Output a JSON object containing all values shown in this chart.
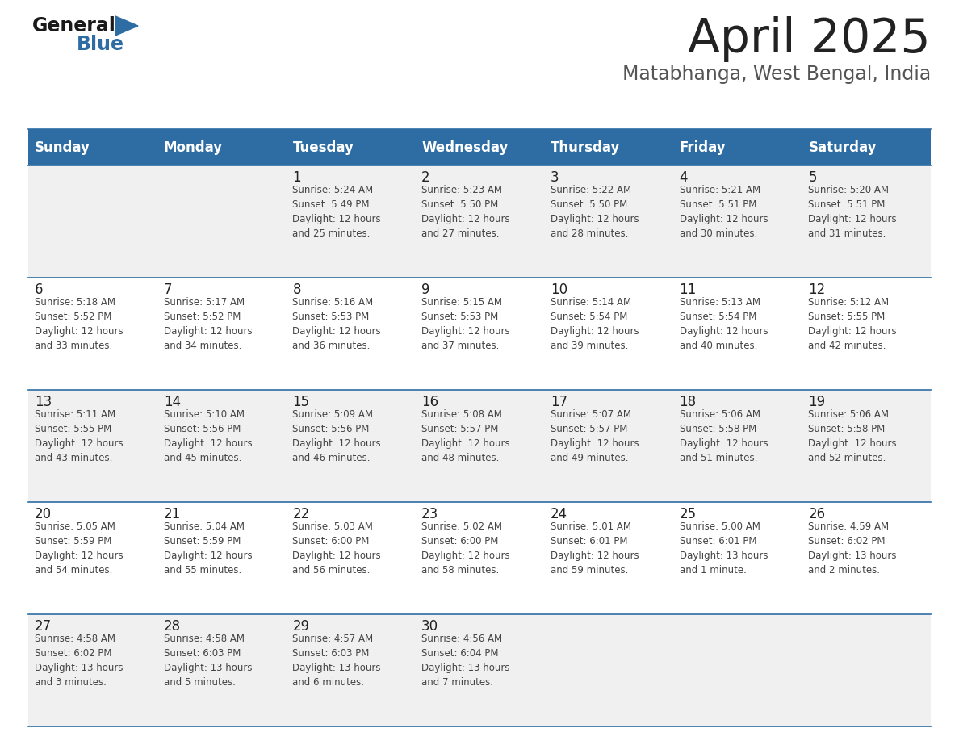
{
  "title": "April 2025",
  "subtitle": "Matabhanga, West Bengal, India",
  "header_bg": "#2E6DA4",
  "header_text_color": "#FFFFFF",
  "day_headers": [
    "Sunday",
    "Monday",
    "Tuesday",
    "Wednesday",
    "Thursday",
    "Friday",
    "Saturday"
  ],
  "title_color": "#222222",
  "subtitle_color": "#555555",
  "line_color": "#2E6DA4",
  "day_number_color": "#222222",
  "cell_text_color": "#444444",
  "logo_general_color": "#1a1a1a",
  "logo_blue_color": "#2E6DA4",
  "cell_bg_light": "#F0F0F0",
  "cell_bg_white": "#FFFFFF",
  "calendar": [
    [
      {
        "day": "",
        "info": ""
      },
      {
        "day": "",
        "info": ""
      },
      {
        "day": "1",
        "info": "Sunrise: 5:24 AM\nSunset: 5:49 PM\nDaylight: 12 hours\nand 25 minutes."
      },
      {
        "day": "2",
        "info": "Sunrise: 5:23 AM\nSunset: 5:50 PM\nDaylight: 12 hours\nand 27 minutes."
      },
      {
        "day": "3",
        "info": "Sunrise: 5:22 AM\nSunset: 5:50 PM\nDaylight: 12 hours\nand 28 minutes."
      },
      {
        "day": "4",
        "info": "Sunrise: 5:21 AM\nSunset: 5:51 PM\nDaylight: 12 hours\nand 30 minutes."
      },
      {
        "day": "5",
        "info": "Sunrise: 5:20 AM\nSunset: 5:51 PM\nDaylight: 12 hours\nand 31 minutes."
      }
    ],
    [
      {
        "day": "6",
        "info": "Sunrise: 5:18 AM\nSunset: 5:52 PM\nDaylight: 12 hours\nand 33 minutes."
      },
      {
        "day": "7",
        "info": "Sunrise: 5:17 AM\nSunset: 5:52 PM\nDaylight: 12 hours\nand 34 minutes."
      },
      {
        "day": "8",
        "info": "Sunrise: 5:16 AM\nSunset: 5:53 PM\nDaylight: 12 hours\nand 36 minutes."
      },
      {
        "day": "9",
        "info": "Sunrise: 5:15 AM\nSunset: 5:53 PM\nDaylight: 12 hours\nand 37 minutes."
      },
      {
        "day": "10",
        "info": "Sunrise: 5:14 AM\nSunset: 5:54 PM\nDaylight: 12 hours\nand 39 minutes."
      },
      {
        "day": "11",
        "info": "Sunrise: 5:13 AM\nSunset: 5:54 PM\nDaylight: 12 hours\nand 40 minutes."
      },
      {
        "day": "12",
        "info": "Sunrise: 5:12 AM\nSunset: 5:55 PM\nDaylight: 12 hours\nand 42 minutes."
      }
    ],
    [
      {
        "day": "13",
        "info": "Sunrise: 5:11 AM\nSunset: 5:55 PM\nDaylight: 12 hours\nand 43 minutes."
      },
      {
        "day": "14",
        "info": "Sunrise: 5:10 AM\nSunset: 5:56 PM\nDaylight: 12 hours\nand 45 minutes."
      },
      {
        "day": "15",
        "info": "Sunrise: 5:09 AM\nSunset: 5:56 PM\nDaylight: 12 hours\nand 46 minutes."
      },
      {
        "day": "16",
        "info": "Sunrise: 5:08 AM\nSunset: 5:57 PM\nDaylight: 12 hours\nand 48 minutes."
      },
      {
        "day": "17",
        "info": "Sunrise: 5:07 AM\nSunset: 5:57 PM\nDaylight: 12 hours\nand 49 minutes."
      },
      {
        "day": "18",
        "info": "Sunrise: 5:06 AM\nSunset: 5:58 PM\nDaylight: 12 hours\nand 51 minutes."
      },
      {
        "day": "19",
        "info": "Sunrise: 5:06 AM\nSunset: 5:58 PM\nDaylight: 12 hours\nand 52 minutes."
      }
    ],
    [
      {
        "day": "20",
        "info": "Sunrise: 5:05 AM\nSunset: 5:59 PM\nDaylight: 12 hours\nand 54 minutes."
      },
      {
        "day": "21",
        "info": "Sunrise: 5:04 AM\nSunset: 5:59 PM\nDaylight: 12 hours\nand 55 minutes."
      },
      {
        "day": "22",
        "info": "Sunrise: 5:03 AM\nSunset: 6:00 PM\nDaylight: 12 hours\nand 56 minutes."
      },
      {
        "day": "23",
        "info": "Sunrise: 5:02 AM\nSunset: 6:00 PM\nDaylight: 12 hours\nand 58 minutes."
      },
      {
        "day": "24",
        "info": "Sunrise: 5:01 AM\nSunset: 6:01 PM\nDaylight: 12 hours\nand 59 minutes."
      },
      {
        "day": "25",
        "info": "Sunrise: 5:00 AM\nSunset: 6:01 PM\nDaylight: 13 hours\nand 1 minute."
      },
      {
        "day": "26",
        "info": "Sunrise: 4:59 AM\nSunset: 6:02 PM\nDaylight: 13 hours\nand 2 minutes."
      }
    ],
    [
      {
        "day": "27",
        "info": "Sunrise: 4:58 AM\nSunset: 6:02 PM\nDaylight: 13 hours\nand 3 minutes."
      },
      {
        "day": "28",
        "info": "Sunrise: 4:58 AM\nSunset: 6:03 PM\nDaylight: 13 hours\nand 5 minutes."
      },
      {
        "day": "29",
        "info": "Sunrise: 4:57 AM\nSunset: 6:03 PM\nDaylight: 13 hours\nand 6 minutes."
      },
      {
        "day": "30",
        "info": "Sunrise: 4:56 AM\nSunset: 6:04 PM\nDaylight: 13 hours\nand 7 minutes."
      },
      {
        "day": "",
        "info": ""
      },
      {
        "day": "",
        "info": ""
      },
      {
        "day": "",
        "info": ""
      }
    ]
  ]
}
